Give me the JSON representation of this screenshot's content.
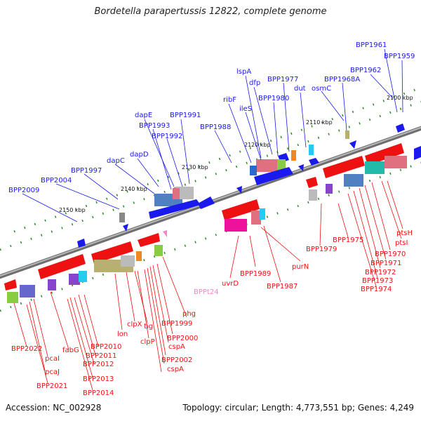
{
  "header": {
    "title": "Bordetella parapertussis 12822, complete genome"
  },
  "footer": {
    "accession": "Accession: NC_002928",
    "summary": "Topology: circular; Length: 4,773,551 bp; Genes: 4,249"
  },
  "ruler": {
    "unit_labels": [
      {
        "label": "2100 kbp",
        "kbp": 2100
      },
      {
        "label": "2110 kbp",
        "kbp": 2110
      },
      {
        "label": "2120 kbp",
        "kbp": 2120
      },
      {
        "label": "2130 kbp",
        "kbp": 2130
      },
      {
        "label": "2140 kbp",
        "kbp": 2140
      },
      {
        "label": "2150 kbp",
        "kbp": 2150
      }
    ]
  },
  "colors": {
    "forward_strand": "#0000ee",
    "reverse_strand": "#ee0000",
    "trna": "#ee88cc",
    "backbone": "#888888",
    "tick": "#228822"
  },
  "labels_forward": [
    "BPP1961",
    "BPP1959",
    "BPP1962",
    "lspA",
    "BPP1968A",
    "dfp",
    "BPP1977",
    "dut",
    "osmC",
    "BPP1980",
    "ribF",
    "ileS",
    "dapE",
    "BPP1991",
    "BPP1993",
    "BPP1988",
    "BPP1992",
    "dapD",
    "dapC",
    "BPP1997",
    "BPP2004",
    "BPP2009"
  ],
  "labels_reverse": [
    "ptsH",
    "ptsI",
    "BPP1970",
    "BPP1971",
    "BPP1972",
    "BPP1973",
    "BPP1974",
    "BPP1975",
    "BPP1979",
    "purN",
    "BPP1987",
    "BPP1989",
    "uvrD",
    "BPPt24",
    "phg",
    "BPP1999",
    "BPP2000",
    "cspA",
    "BPP2002",
    "cspA",
    "clpX",
    "tig",
    "clpP",
    "lon",
    "BPP2010",
    "BPP2011",
    "BPP2012",
    "BPP2013",
    "BPP2014",
    "fabG",
    "pcaI",
    "pcaJ",
    "BPP2021",
    "BPP2022"
  ]
}
